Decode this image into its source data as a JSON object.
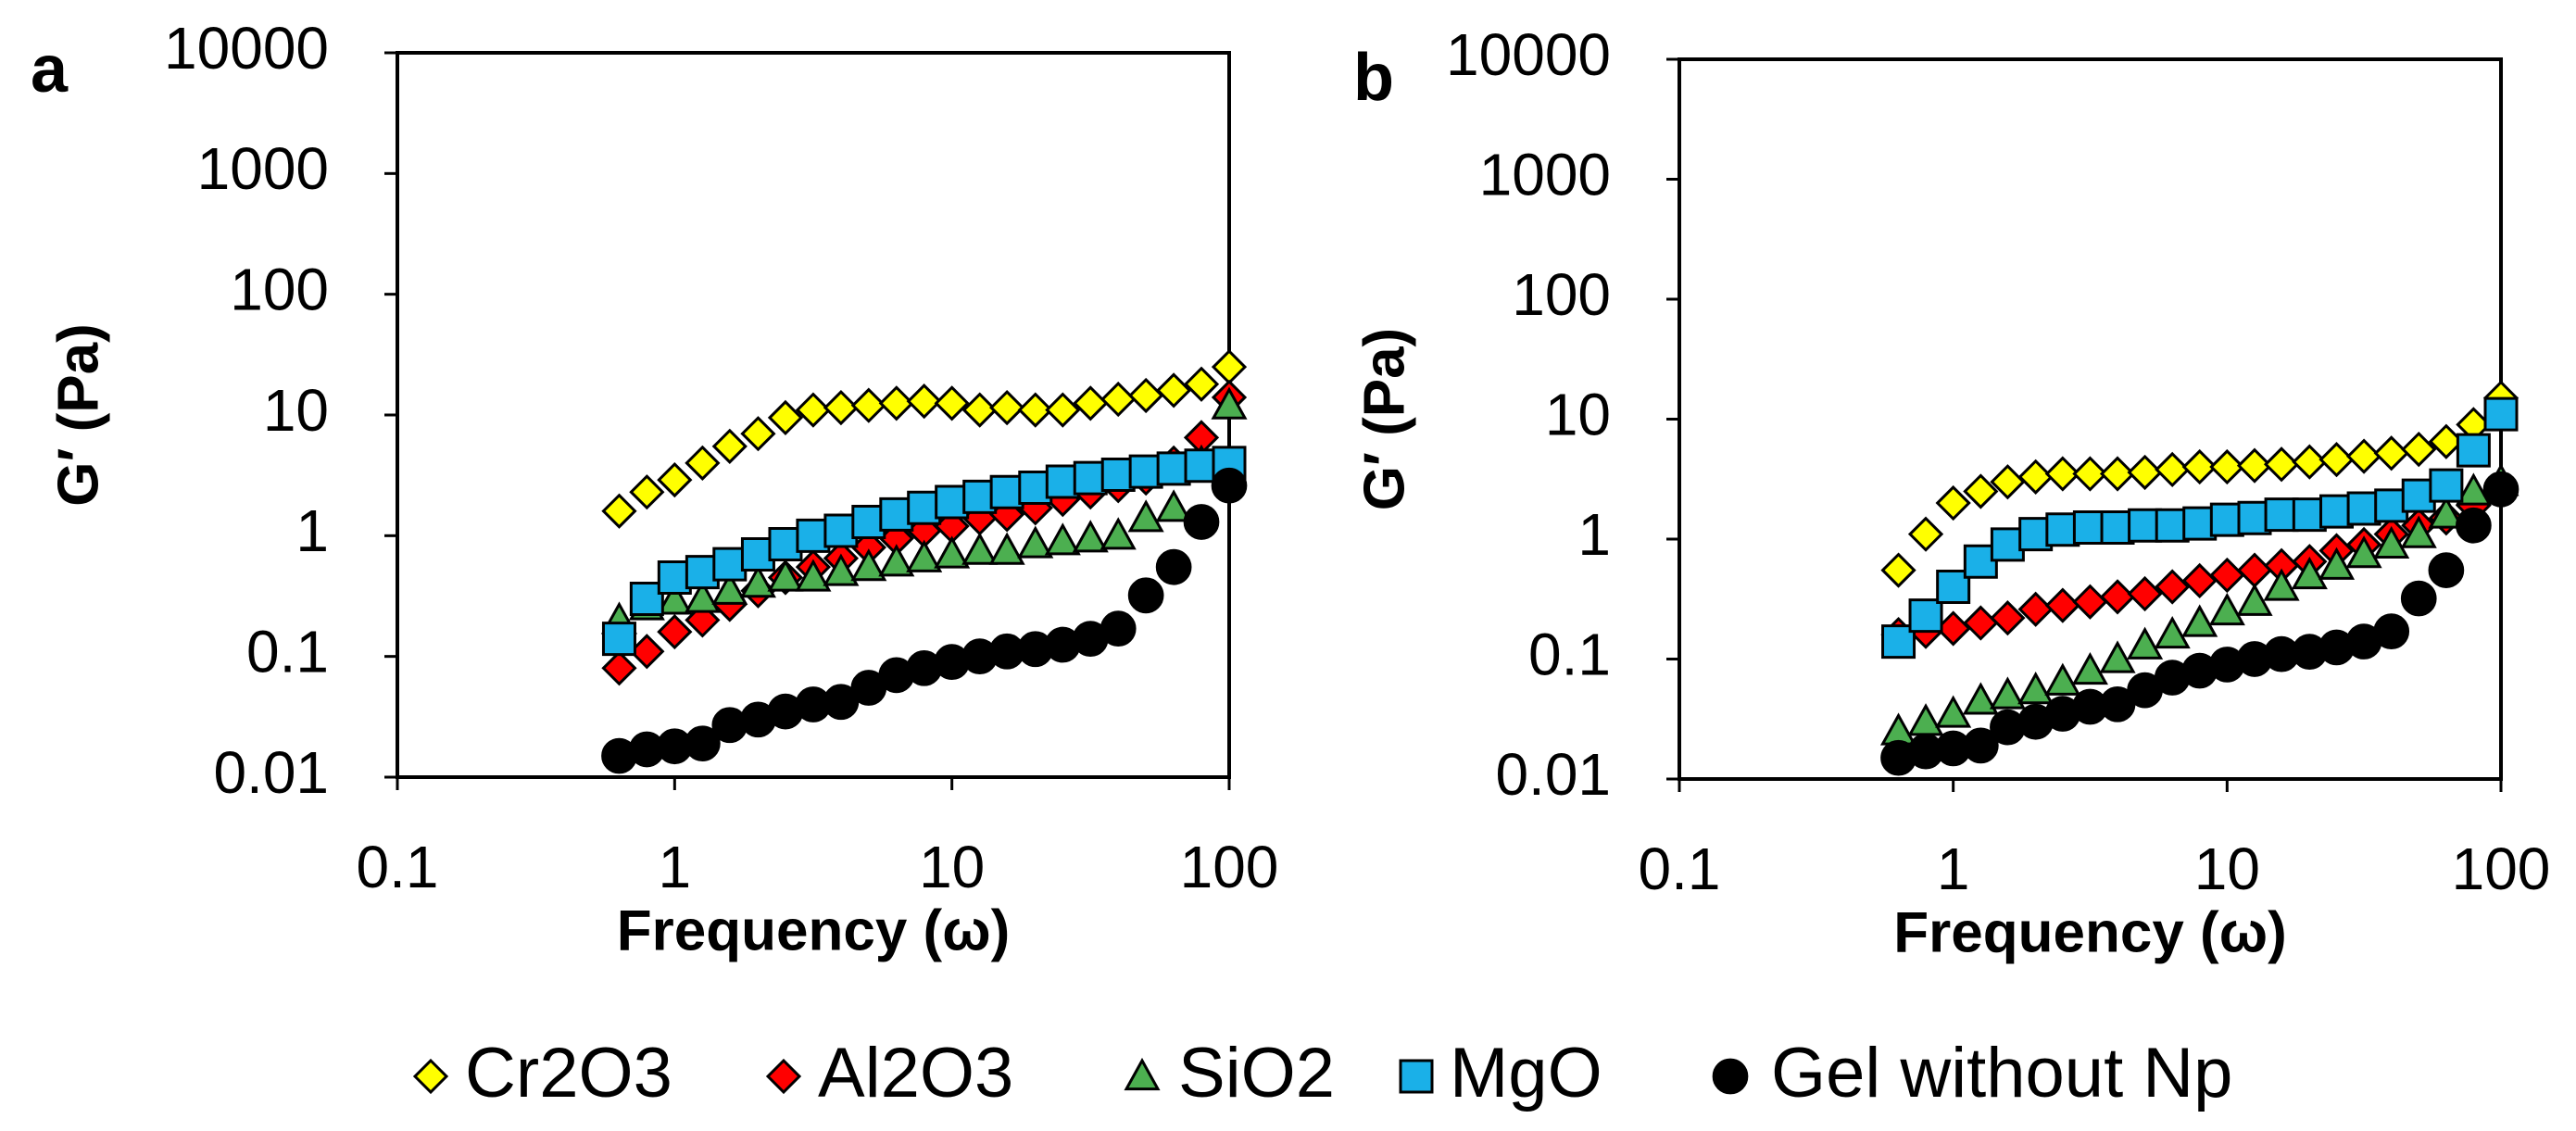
{
  "chart_data": [
    {
      "type": "scatter",
      "label": "a",
      "x_label": "Frequency (ω)",
      "y_label": "G′ (Pa)",
      "xscale": "log",
      "yscale": "log",
      "xlim": [
        0.1,
        100
      ],
      "ylim": [
        0.01,
        10000
      ],
      "xticks": [
        0.1,
        1,
        10,
        100
      ],
      "yticks": [
        0.01,
        0.1,
        1,
        10,
        100,
        1000,
        10000
      ],
      "x": [
        0.631,
        0.794,
        1,
        1.26,
        1.58,
        2,
        2.51,
        3.16,
        3.98,
        5.01,
        6.31,
        7.94,
        10,
        12.6,
        15.8,
        20,
        25.1,
        31.6,
        39.8,
        50.1,
        63.1,
        79.4,
        100
      ],
      "series": [
        {
          "name": "Cr2O3",
          "color": "#ffff00",
          "marker": "diamond",
          "values": [
            1.6,
            2.3,
            2.9,
            4,
            5.5,
            7,
            9.5,
            11,
            11.5,
            12,
            12.5,
            13,
            12.5,
            11,
            11.5,
            11,
            11,
            12.5,
            13.5,
            14.5,
            16,
            18,
            25
          ]
        },
        {
          "name": "Al2O3",
          "color": "#ff0000",
          "marker": "diamond",
          "values": [
            0.08,
            0.11,
            0.16,
            0.2,
            0.27,
            0.35,
            0.45,
            0.55,
            0.65,
            0.8,
            0.95,
            1.1,
            1.2,
            1.4,
            1.5,
            1.7,
            2,
            2.3,
            2.6,
            3,
            4,
            6.5,
            14
          ]
        },
        {
          "name": "SiO2",
          "color": "#4caf50",
          "marker": "triangle",
          "values": [
            0.2,
            0.26,
            0.29,
            0.3,
            0.35,
            0.4,
            0.45,
            0.45,
            0.5,
            0.55,
            0.6,
            0.65,
            0.7,
            0.75,
            0.75,
            0.85,
            0.9,
            0.95,
            1,
            1.4,
            1.7,
            4,
            12
          ]
        },
        {
          "name": "MgO",
          "color": "#1ab0e8",
          "marker": "square",
          "values": [
            0.14,
            0.3,
            0.45,
            0.5,
            0.58,
            0.7,
            0.85,
            1,
            1.1,
            1.3,
            1.5,
            1.7,
            1.9,
            2.1,
            2.3,
            2.5,
            2.8,
            3,
            3.2,
            3.4,
            3.6,
            3.8,
            4
          ]
        },
        {
          "name": "Gel without Np",
          "color": "#000000",
          "marker": "circle",
          "values": [
            0.015,
            0.017,
            0.018,
            0.019,
            0.027,
            0.03,
            0.035,
            0.04,
            0.042,
            0.055,
            0.07,
            0.08,
            0.09,
            0.1,
            0.11,
            0.115,
            0.125,
            0.14,
            0.17,
            0.32,
            0.55,
            1.3,
            2.6
          ]
        }
      ]
    },
    {
      "type": "scatter",
      "label": "b",
      "x_label": "Frequency (ω)",
      "y_label": "G′ (Pa)",
      "xscale": "log",
      "yscale": "log",
      "xlim": [
        0.1,
        100
      ],
      "ylim": [
        0.01,
        10000
      ],
      "xticks": [
        0.1,
        1,
        10,
        100
      ],
      "yticks": [
        0.01,
        0.1,
        1,
        10,
        100,
        1000,
        10000
      ],
      "x": [
        0.631,
        0.794,
        1,
        1.26,
        1.58,
        2,
        2.51,
        3.16,
        3.98,
        5.01,
        6.31,
        7.94,
        10,
        12.6,
        15.8,
        20,
        25.1,
        31.6,
        39.8,
        50.1,
        63.1,
        79.4,
        100
      ],
      "series": [
        {
          "color": "#ffff00",
          "marker": "diamond",
          "values": [
            0.55,
            1.1,
            2,
            2.5,
            3,
            3.3,
            3.5,
            3.5,
            3.5,
            3.6,
            3.8,
            4,
            4,
            4.1,
            4.2,
            4.4,
            4.6,
            4.9,
            5.2,
            5.6,
            6.5,
            9,
            15
          ]
        },
        {
          "color": "#ff0000",
          "marker": "diamond",
          "values": [
            0.16,
            0.17,
            0.18,
            0.2,
            0.22,
            0.26,
            0.28,
            0.3,
            0.33,
            0.35,
            0.4,
            0.45,
            0.5,
            0.55,
            0.6,
            0.65,
            0.8,
            0.9,
            1.1,
            1.3,
            1.5,
            1.9,
            2.5
          ]
        },
        {
          "color": "#4caf50",
          "marker": "triangle",
          "values": [
            0.025,
            0.03,
            0.035,
            0.045,
            0.05,
            0.055,
            0.065,
            0.08,
            0.1,
            0.13,
            0.16,
            0.2,
            0.25,
            0.3,
            0.4,
            0.5,
            0.6,
            0.75,
            0.9,
            1.1,
            1.6,
            2.5,
            3
          ]
        },
        {
          "color": "#1ab0e8",
          "marker": "square",
          "values": [
            0.14,
            0.23,
            0.4,
            0.65,
            0.9,
            1.1,
            1.2,
            1.25,
            1.25,
            1.3,
            1.3,
            1.35,
            1.45,
            1.5,
            1.6,
            1.6,
            1.7,
            1.8,
            1.9,
            2.3,
            2.8,
            5.5,
            11
          ]
        },
        {
          "color": "#000000",
          "marker": "circle",
          "values": [
            0.015,
            0.017,
            0.018,
            0.019,
            0.027,
            0.03,
            0.035,
            0.04,
            0.042,
            0.055,
            0.07,
            0.08,
            0.09,
            0.1,
            0.11,
            0.115,
            0.125,
            0.14,
            0.17,
            0.32,
            0.55,
            1.3,
            2.6
          ]
        }
      ]
    }
  ]
}
